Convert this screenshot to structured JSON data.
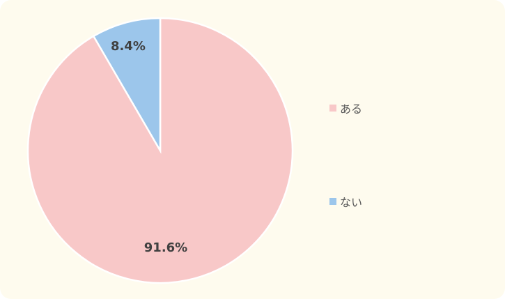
{
  "chart_data": {
    "type": "pie",
    "title": "",
    "categories": [
      "ある",
      "ない"
    ],
    "values": [
      91.6,
      8.4
    ],
    "value_unit": "%",
    "data_labels": [
      "91.6%",
      "8.4%"
    ],
    "colors": [
      "#f8c8c8",
      "#9cc6eb"
    ],
    "start_angle_deg": 0,
    "direction": "clockwise",
    "legend": "right"
  },
  "style": {
    "background": "#fefbee",
    "slice_border": "#ffffff",
    "label_color": "#404040",
    "legend_text_color": "#595959"
  }
}
